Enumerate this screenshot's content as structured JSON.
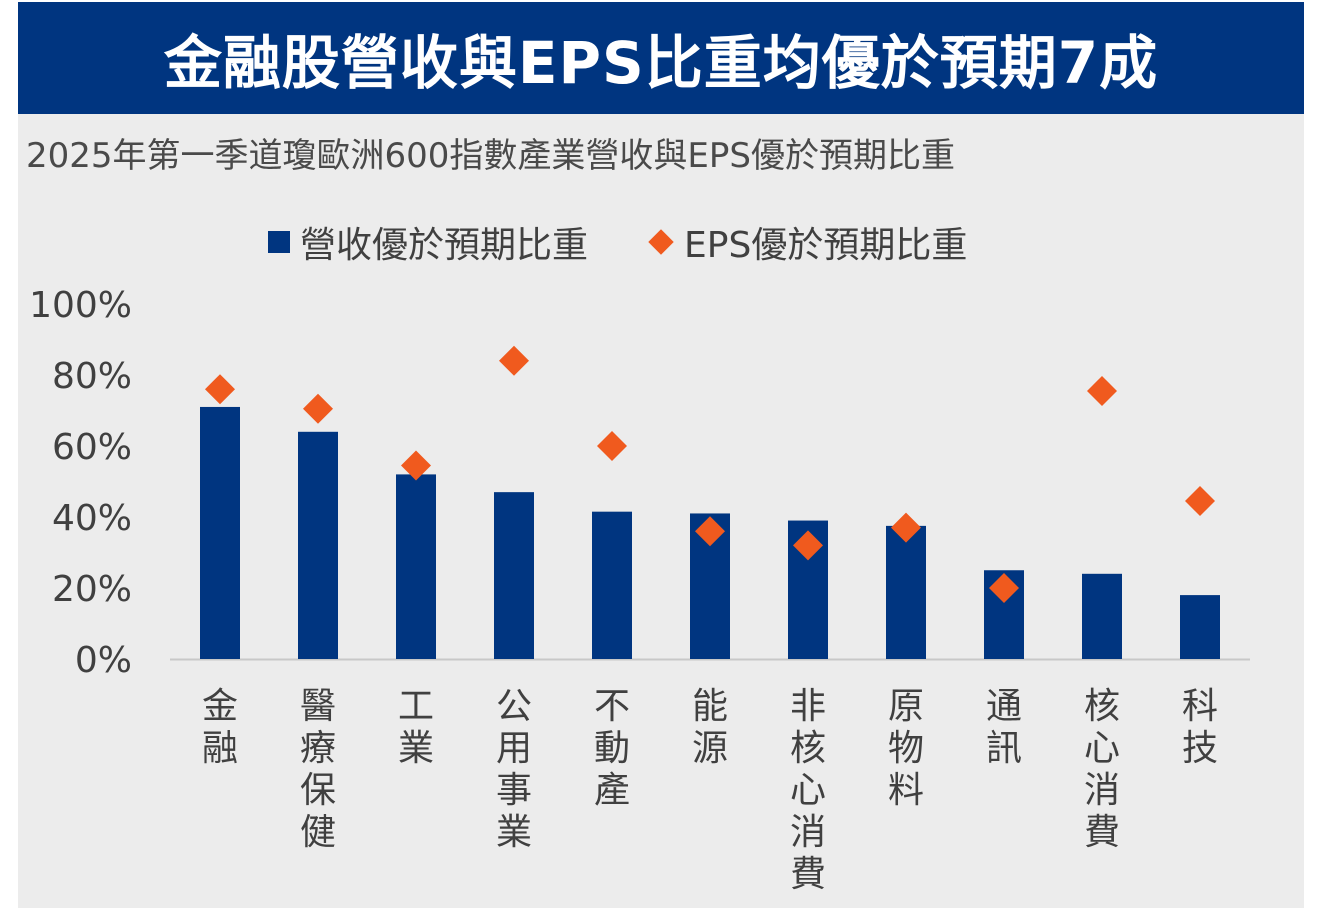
{
  "title": "金融股營收與EPS比重均優於預期7成",
  "subtitle": "2025年第一季道瓊歐洲600指數產業營收與EPS優於預期比重",
  "legend": {
    "revenue": "營收優於預期比重",
    "eps": "EPS優於預期比重"
  },
  "colors": {
    "banner": "#003580",
    "bar": "#003580",
    "marker": "#f05a1e",
    "panel": "#ececec"
  },
  "chart_data": {
    "type": "bar",
    "categories": [
      "金融",
      "醫療保健",
      "工業",
      "公用事業",
      "不動產",
      "能源",
      "非核心消費",
      "原物料",
      "通訊",
      "核心消費",
      "科技"
    ],
    "series": [
      {
        "name": "營收優於預期比重",
        "type": "bar",
        "values": [
          71,
          64,
          52,
          47,
          41.5,
          41,
          39,
          37.5,
          25,
          24,
          18
        ]
      },
      {
        "name": "EPS優於預期比重",
        "type": "scatter",
        "marker": "diamond",
        "values": [
          76,
          70.5,
          54.5,
          84,
          60,
          36,
          32,
          37,
          20,
          75.5,
          44.5
        ]
      }
    ],
    "yticks": [
      "0%",
      "20%",
      "40%",
      "60%",
      "80%",
      "100%"
    ],
    "ylim": [
      0,
      100
    ],
    "grid": false,
    "legend_position": "top"
  }
}
